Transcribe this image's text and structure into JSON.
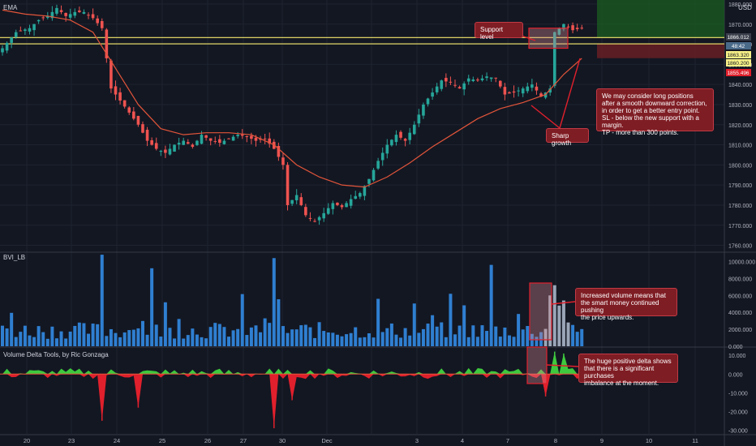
{
  "panes": {
    "price_label": "EMA",
    "volume_label": "BVI_LB",
    "delta_label": "Volume Delta Tools, by Ric Gonzaga",
    "currency": "USD"
  },
  "price_tags": [
    {
      "value": "1866.012",
      "color": "#3a3f4b",
      "text_color": "#ffffff"
    },
    {
      "value": "48:42",
      "color": "#4a6a8a",
      "text_color": "#ffffff"
    },
    {
      "value": "1863.320",
      "color": "#f7f087",
      "text_color": "#131722"
    },
    {
      "value": "1860.200",
      "color": "#f7f087",
      "text_color": "#131722"
    },
    {
      "value": "1855.496",
      "color": "#e0202c",
      "text_color": "#ffffff"
    }
  ],
  "notes": {
    "support": "Support level",
    "sharp": "Sharp growth",
    "long": "We may consider long positions\nafter a smooth downward correction,\nin order to get a better entry point.\nSL - below the new support with a margin.\nTP - more than 300 points.",
    "volume": "Increased volume means that\nthe smart money continued pushing\nthe price upwards.",
    "delta": "The huge positive delta shows\nthat there is a significant purchases\nimbalance at the moment."
  },
  "colors": {
    "up": "#26a69a",
    "down": "#ef5350",
    "ema": "#e2553a",
    "volume_bar": "#2f7fd1",
    "delta_pos": "#3ec93e",
    "delta_neg": "#e0202c",
    "support_line": "#f5e96b",
    "tp_zone": "#1b5e20",
    "sl_zone": "#6b1f24"
  },
  "chart_data": [
    {
      "type": "candlestick",
      "title": "EMA",
      "x_tick_labels": [
        "20",
        "23",
        "24",
        "25",
        "26",
        "27",
        "30",
        "Dec",
        "3",
        "4",
        "7",
        "8",
        "9",
        "10",
        "11"
      ],
      "y_tick_labels": [
        1760,
        1770,
        1780,
        1790,
        1800,
        1810,
        1820,
        1830,
        1840,
        1850,
        1860,
        1870,
        1880
      ],
      "ylim": [
        1757,
        1882
      ],
      "support_levels": [
        1863.32,
        1860.2
      ],
      "close_path": [
        [
          0,
          1858
        ],
        [
          3,
          1866
        ],
        [
          6,
          1868
        ],
        [
          8,
          1872
        ],
        [
          10,
          1874
        ],
        [
          12,
          1878
        ],
        [
          14,
          1874
        ],
        [
          16,
          1876
        ],
        [
          18,
          1876
        ],
        [
          20,
          1873
        ],
        [
          22,
          1868
        ],
        [
          24,
          1838
        ],
        [
          26,
          1832
        ],
        [
          28,
          1826
        ],
        [
          30,
          1820
        ],
        [
          32,
          1812
        ],
        [
          34,
          1808
        ],
        [
          36,
          1806
        ],
        [
          38,
          1810
        ],
        [
          40,
          1812
        ],
        [
          42,
          1809
        ],
        [
          44,
          1815
        ],
        [
          46,
          1812
        ],
        [
          48,
          1811
        ],
        [
          50,
          1813
        ],
        [
          52,
          1815
        ],
        [
          54,
          1814
        ],
        [
          56,
          1812
        ],
        [
          58,
          1813
        ],
        [
          60,
          1808
        ],
        [
          62,
          1800
        ],
        [
          63,
          1780
        ],
        [
          65,
          1785
        ],
        [
          67,
          1775
        ],
        [
          69,
          1772
        ],
        [
          71,
          1776
        ],
        [
          73,
          1781
        ],
        [
          75,
          1779
        ],
        [
          77,
          1783
        ],
        [
          79,
          1786
        ],
        [
          81,
          1793
        ],
        [
          83,
          1802
        ],
        [
          85,
          1810
        ],
        [
          87,
          1815
        ],
        [
          89,
          1812
        ],
        [
          91,
          1820
        ],
        [
          93,
          1830
        ],
        [
          95,
          1836
        ],
        [
          97,
          1842
        ],
        [
          99,
          1841
        ],
        [
          101,
          1838
        ],
        [
          103,
          1843
        ],
        [
          105,
          1842
        ],
        [
          107,
          1844
        ],
        [
          109,
          1843
        ],
        [
          111,
          1835
        ],
        [
          113,
          1836
        ],
        [
          115,
          1838
        ],
        [
          117,
          1840
        ],
        [
          119,
          1834
        ],
        [
          121,
          1838
        ],
        [
          122,
          1866
        ],
        [
          124,
          1870
        ],
        [
          126,
          1867
        ],
        [
          128,
          1868
        ]
      ],
      "ema_path": [
        [
          0,
          1877
        ],
        [
          5,
          1875
        ],
        [
          10,
          1874
        ],
        [
          15,
          1872
        ],
        [
          20,
          1866
        ],
        [
          25,
          1848
        ],
        [
          30,
          1830
        ],
        [
          35,
          1818
        ],
        [
          40,
          1815
        ],
        [
          45,
          1816
        ],
        [
          50,
          1816
        ],
        [
          55,
          1815
        ],
        [
          60,
          1810
        ],
        [
          65,
          1800
        ],
        [
          70,
          1794
        ],
        [
          75,
          1790
        ],
        [
          80,
          1789
        ],
        [
          85,
          1794
        ],
        [
          90,
          1801
        ],
        [
          95,
          1809
        ],
        [
          100,
          1816
        ],
        [
          105,
          1823
        ],
        [
          110,
          1828
        ],
        [
          115,
          1831
        ],
        [
          120,
          1835
        ],
        [
          124,
          1845
        ],
        [
          128,
          1853
        ]
      ],
      "x_count": 129
    },
    {
      "type": "bar",
      "title": "BVI_LB",
      "y_tick_labels": [
        "0.000",
        "2000.000",
        "4000.000",
        "6000.000",
        "8000.000",
        "10000.000"
      ],
      "ylim": [
        0,
        11000
      ],
      "spikes": [
        [
          22,
          10800
        ],
        [
          33,
          9200
        ],
        [
          60,
          10400
        ],
        [
          108,
          9600
        ],
        [
          121,
          6000
        ],
        [
          122,
          7200
        ],
        [
          124,
          5400
        ]
      ],
      "base_level": 2200
    },
    {
      "type": "bar",
      "title": "Volume Delta Tools, by Ric Gonzaga",
      "y_tick_labels": [
        "10.000",
        "0.000",
        "-10.000",
        "-20.000",
        "-30.000"
      ],
      "ylim": [
        -32000,
        14000
      ],
      "spikes": [
        [
          22,
          -25000
        ],
        [
          30,
          -18000
        ],
        [
          60,
          -29000
        ],
        [
          64,
          -14000
        ],
        [
          120,
          -12000
        ],
        [
          122,
          12000
        ],
        [
          124,
          11000
        ]
      ]
    }
  ],
  "x_axis_right_labels": [
    "9",
    "10",
    "11"
  ]
}
